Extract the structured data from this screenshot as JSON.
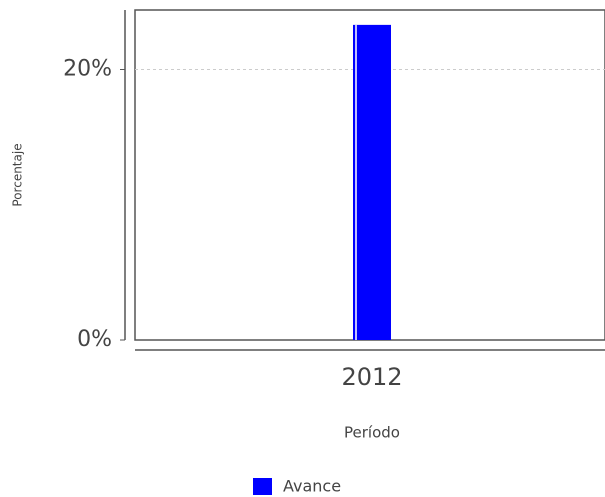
{
  "chart_data": {
    "type": "bar",
    "x_label": "Período",
    "y_label": "Porcentaje",
    "categories": [
      "2012"
    ],
    "series": [
      {
        "name": "Avance",
        "color": "#0000ff",
        "values": [
          23.3
        ]
      }
    ],
    "ylim": [
      0,
      24.4
    ],
    "yticks": [
      {
        "value": 0,
        "label": "0%"
      },
      {
        "value": 20,
        "label": "20%"
      }
    ],
    "grid": true
  }
}
